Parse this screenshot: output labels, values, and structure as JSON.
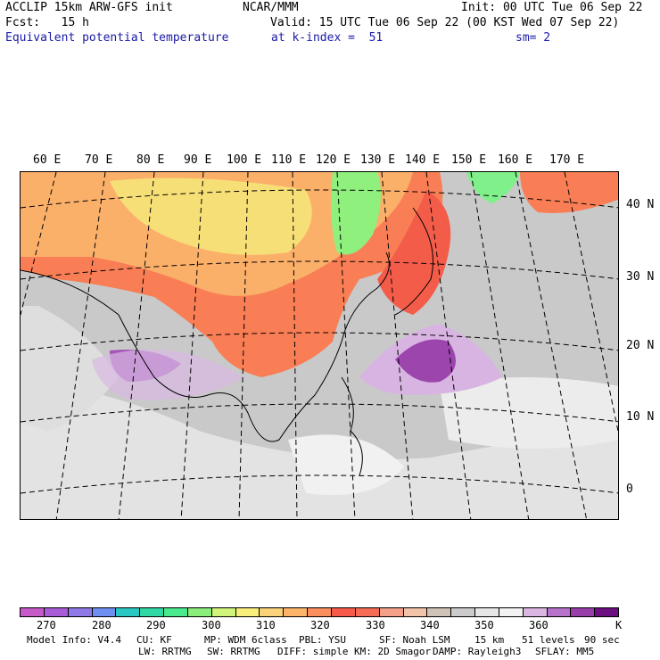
{
  "header": {
    "line1_left": "ACCLIP 15km ARW-GFS init",
    "line1_center": "NCAR/MMM",
    "line1_right": "Init: 00 UTC Tue 06 Sep 22",
    "line2_left": "Fcst:   15 h",
    "line2_right": "Valid: 15 UTC Tue 06 Sep 22 (00 KST Wed 07 Sep 22)",
    "line3_left": "Equivalent potential temperature",
    "line3_center": "at k-index =  51",
    "line3_right": "sm= 2"
  },
  "map": {
    "lon_labels": [
      "60 E",
      "70 E",
      "80 E",
      "90 E",
      "100 E",
      "110 E",
      "120 E",
      "130 E",
      "140 E",
      "150 E",
      "160 E",
      "170 E"
    ],
    "lat_labels": [
      "40 N",
      "30 N",
      "20 N",
      "10 N",
      "0"
    ]
  },
  "colorbar": {
    "unit": "K",
    "colors": [
      "#c65ac8",
      "#a85cd8",
      "#8f79e6",
      "#6e8ff0",
      "#29c7c1",
      "#2fd8a4",
      "#49e98d",
      "#89ee7a",
      "#d1f57b",
      "#f7ee7b",
      "#fad279",
      "#fdb56a",
      "#fb8e5d",
      "#f85a4a",
      "#f56b56",
      "#f4a088",
      "#f1c3a8",
      "#cfc3b7",
      "#cbcbcb",
      "#e6e6e6",
      "#f2f2f2",
      "#dab6e2",
      "#b772c9",
      "#973ea8",
      "#6c0f80"
    ],
    "labels": [
      "270",
      "280",
      "290",
      "300",
      "310",
      "320",
      "330",
      "340",
      "350",
      "360"
    ]
  },
  "footer": {
    "line1": [
      "Model Info: V4.4",
      "CU: KF",
      "MP: WDM 6class",
      "PBL: YSU",
      "SF: Noah LSM",
      "15 km",
      "51 levels",
      "90 sec"
    ],
    "line2": [
      "LW: RRTMG",
      "SW: RRTMG",
      "DIFF: simple",
      "KM: 2D Smagor",
      "DAMP: Rayleigh3",
      "SFLAY: MM5"
    ]
  }
}
